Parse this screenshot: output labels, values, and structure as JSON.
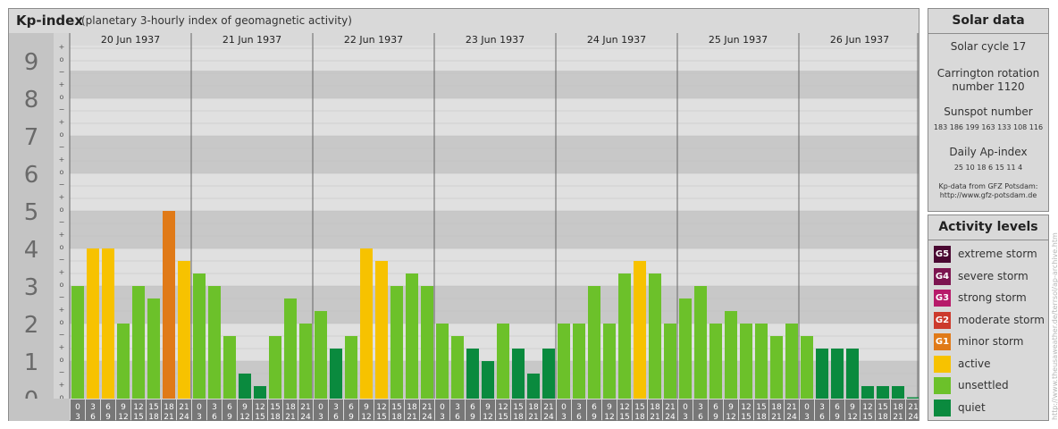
{
  "header": {
    "title": "Kp-index",
    "subtitle": "(planetary 3-hourly index of geomagnetic activity)"
  },
  "chart_data": {
    "type": "bar",
    "y_ticks": [
      "0",
      "1",
      "2",
      "3",
      "4",
      "5",
      "6",
      "7",
      "8",
      "9"
    ],
    "minor_ticks": [
      "o",
      "+",
      "−"
    ],
    "days": [
      "20 Jun 1937",
      "21 Jun 1937",
      "22 Jun 1937",
      "23 Jun 1937",
      "24 Jun 1937",
      "25 Jun 1937",
      "26 Jun 1937"
    ],
    "intervals": [
      [
        "0",
        "3"
      ],
      [
        "3",
        "6"
      ],
      [
        "6",
        "9"
      ],
      [
        "9",
        "12"
      ],
      [
        "12",
        "15"
      ],
      [
        "15",
        "18"
      ],
      [
        "18",
        "21"
      ],
      [
        "21",
        "24"
      ]
    ],
    "ylim": [
      0,
      9.33
    ],
    "values": [
      [
        3.0,
        4.0,
        4.0,
        2.0,
        3.0,
        2.667,
        5.0,
        3.667
      ],
      [
        3.333,
        3.0,
        1.667,
        0.667,
        0.333,
        1.667,
        2.667,
        2.0
      ],
      [
        2.333,
        1.333,
        1.667,
        4.0,
        3.667,
        3.0,
        3.333,
        3.0
      ],
      [
        2.0,
        1.667,
        1.333,
        1.0,
        2.0,
        1.333,
        0.667,
        1.333
      ],
      [
        2.0,
        2.0,
        3.0,
        2.0,
        3.333,
        3.667,
        3.333,
        2.0
      ],
      [
        2.667,
        3.0,
        2.0,
        2.333,
        2.0,
        2.0,
        1.667,
        2.0
      ],
      [
        1.667,
        1.333,
        1.333,
        1.333,
        0.333,
        0.333,
        0.333,
        0.0
      ]
    ],
    "colors": {
      "quiet": "#0a8a3e",
      "unsettled": "#6cc12a",
      "active": "#f7c200",
      "G1": "#e07a18",
      "G2": "#cc3a2c",
      "G3": "#b71a6a",
      "G4": "#7c1450",
      "G5": "#4a0832"
    },
    "band_colors": [
      "#c8c8c8",
      "#e0e0e0"
    ],
    "grid": true
  },
  "solar_data": {
    "title": "Solar data",
    "solar_cycle": "Solar cycle 17",
    "carrington_line1": "Carrington rotation",
    "carrington_line2": "number 1120",
    "sunspot_label": "Sunspot number",
    "sunspot_values": "183  186  199  163  133  108  116",
    "ap_label": "Daily Ap-index",
    "ap_values": "25    10    18     6    15    11     4",
    "source_line1": "Kp-data from GFZ Potsdam:",
    "source_line2": "http://www.gfz-potsdam.de"
  },
  "activity_levels": {
    "title": "Activity levels",
    "items": [
      {
        "code": "G5",
        "label": "extreme storm",
        "color": "#4a0832"
      },
      {
        "code": "G4",
        "label": "severe storm",
        "color": "#7c1450"
      },
      {
        "code": "G3",
        "label": "strong storm",
        "color": "#b71a6a"
      },
      {
        "code": "G2",
        "label": "moderate storm",
        "color": "#cc3a2c"
      },
      {
        "code": "G1",
        "label": "minor storm",
        "color": "#e07a18"
      },
      {
        "code": "",
        "label": "active",
        "color": "#f7c200"
      },
      {
        "code": "",
        "label": "unsettled",
        "color": "#6cc12a"
      },
      {
        "code": "",
        "label": "quiet",
        "color": "#0a8a3e"
      }
    ]
  },
  "watermark": "http://www.theusaweather.de/terrsol/ap-archive.htm"
}
